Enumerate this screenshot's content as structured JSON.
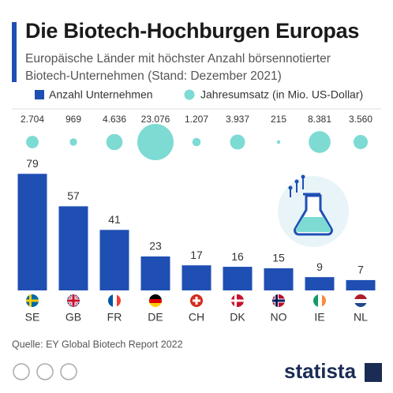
{
  "chart_data": {
    "type": "bar",
    "title": "Die Biotech-Hochburgen Europas",
    "subtitle": "Europäische Länder mit höchster Anzahl börsennotierter Biotech-Unternehmen (Stand: Dezember 2021)",
    "source": "Quelle: EY Global Biotech Report 2022",
    "brand": "statista",
    "categories": [
      "SE",
      "GB",
      "FR",
      "DE",
      "CH",
      "DK",
      "NO",
      "IE",
      "NL"
    ],
    "series": [
      {
        "name": "Anzahl Unternehmen",
        "color": "#1f4fb3",
        "values": [
          79,
          57,
          41,
          23,
          17,
          16,
          15,
          9,
          7
        ]
      },
      {
        "name": "Jahresumsatz (in Mio. US-Dollar)",
        "color": "#7ddbd3",
        "values": [
          2704,
          969,
          4636,
          23076,
          1207,
          3937,
          215,
          8381,
          3560
        ],
        "value_labels": [
          "2.704",
          "969",
          "4.636",
          "23.076",
          "1.207",
          "3.937",
          "215",
          "8.381",
          "3.560"
        ]
      }
    ]
  }
}
